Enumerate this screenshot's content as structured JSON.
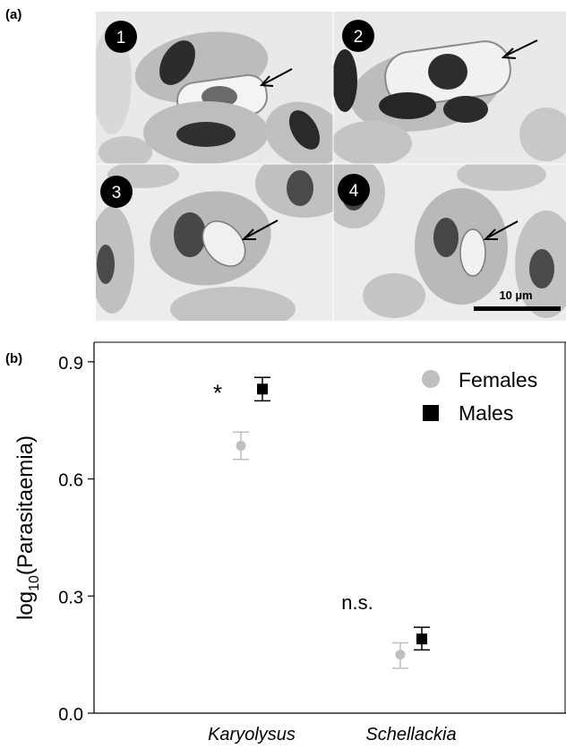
{
  "panel_a": {
    "label": "(a)",
    "subpanels": [
      "1",
      "2",
      "3",
      "4"
    ],
    "scale_bar_label": "10 µm"
  },
  "panel_b": {
    "label": "(b)"
  },
  "chart_data": {
    "type": "scatter",
    "categories": [
      "Karyolysus",
      "Schellackia"
    ],
    "ylabel_base": "log",
    "ylabel_sub": "10",
    "ylabel_rest": "(Parasitaemia)",
    "ylim": [
      0.0,
      0.95
    ],
    "yticks": [
      0.0,
      0.3,
      0.6,
      0.9
    ],
    "ytick_labels": [
      "0.0",
      "0.3",
      "0.6",
      "0.9"
    ],
    "series": [
      {
        "name": "Females",
        "marker": "circle",
        "color": "#bfbfbf",
        "values": [
          0.685,
          0.15
        ],
        "err_low": [
          0.65,
          0.115
        ],
        "err_high": [
          0.72,
          0.18
        ]
      },
      {
        "name": "Males",
        "marker": "square",
        "color": "#000000",
        "values": [
          0.83,
          0.19
        ],
        "err_low": [
          0.8,
          0.162
        ],
        "err_high": [
          0.86,
          0.22
        ]
      }
    ],
    "annotations": [
      {
        "text": "*",
        "category": "Karyolysus",
        "y": 0.8
      },
      {
        "text": "n.s.",
        "category": "Schellackia",
        "y": 0.25
      }
    ],
    "legend": "top-right"
  }
}
